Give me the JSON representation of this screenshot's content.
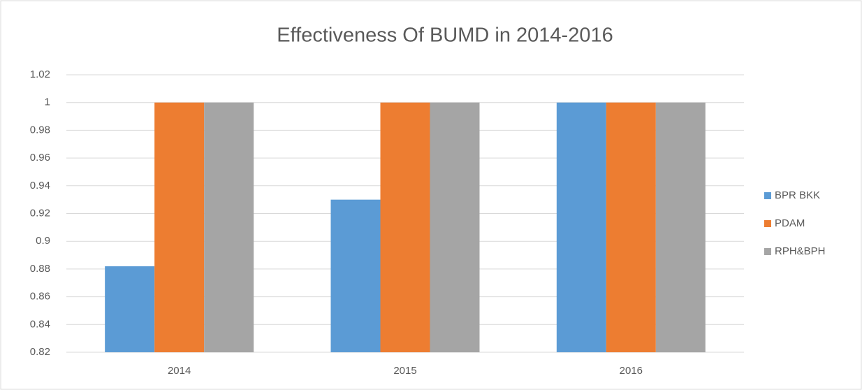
{
  "chart_data": {
    "type": "bar",
    "title": "Effectiveness Of BUMD in 2014-2016",
    "categories": [
      "2014",
      "2015",
      "2016"
    ],
    "series": [
      {
        "name": "BPR BKK",
        "color": "#5b9bd5",
        "values": [
          0.882,
          0.93,
          1
        ]
      },
      {
        "name": "PDAM",
        "color": "#ed7d31",
        "values": [
          1,
          1,
          1
        ]
      },
      {
        "name": "RPH&BPH",
        "color": "#a5a5a5",
        "values": [
          1,
          1,
          1
        ]
      }
    ],
    "ylim": [
      0.82,
      1.02
    ],
    "yticks": [
      0.82,
      0.84,
      0.86,
      0.88,
      0.9,
      0.92,
      0.94,
      0.96,
      0.98,
      1,
      1.02
    ],
    "grid": true,
    "legend": "right"
  }
}
